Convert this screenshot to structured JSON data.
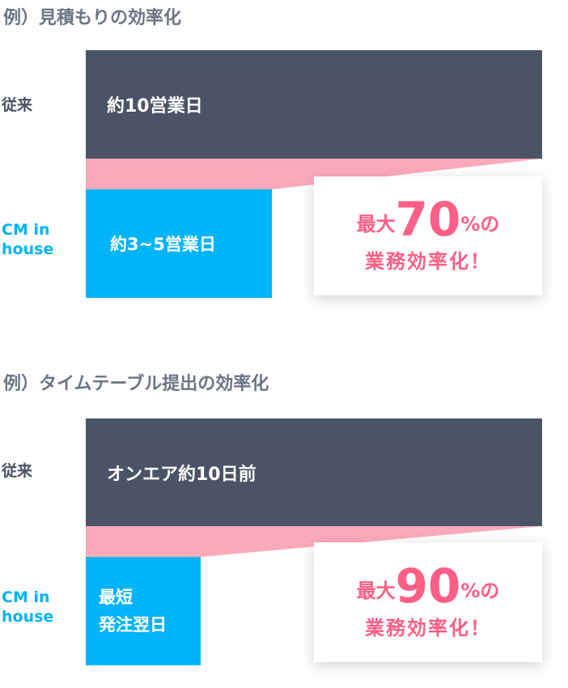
{
  "sections": [
    {
      "title": "例）見積もりの効率化",
      "label_old": "従来",
      "label_new": "CM in house",
      "old_value": "約10営業日",
      "new_value": "約3~5営業日",
      "callout_prefix": "最大",
      "callout_number": "70",
      "callout_suffix": "%の",
      "callout_line2": "業務効率化！"
    },
    {
      "title": "例）タイムテーブル提出の効率化",
      "label_old": "従来",
      "label_new": "CM in house",
      "old_value": "オンエア約10日前",
      "new_value_line1": "最短",
      "new_value_line2": "発注翌日",
      "callout_prefix": "最大",
      "callout_number": "90",
      "callout_suffix": "%の",
      "callout_line2": "業務効率化！"
    }
  ],
  "colors": {
    "dark": "#4b5466",
    "blue": "#00b4f9",
    "pink": "#fda9bc",
    "accent": "#fd5f86"
  }
}
